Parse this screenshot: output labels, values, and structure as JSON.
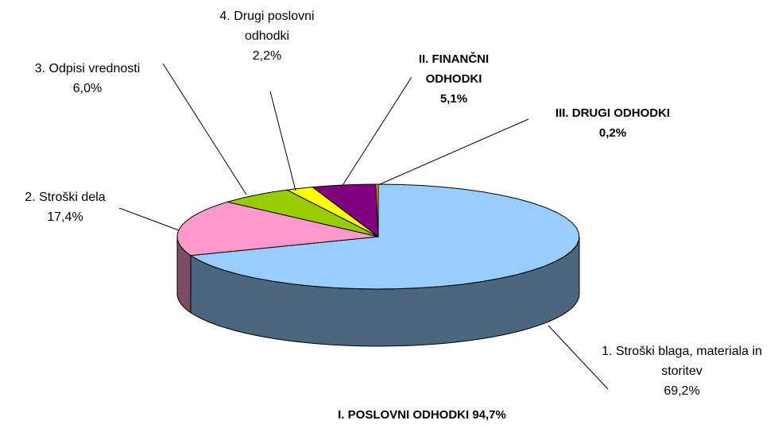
{
  "chart_data": {
    "type": "pie3d",
    "categories": [
      "1. Stroški blaga, materiala in storitev",
      "2. Stroški dela",
      "3. Odpisi vrednosti",
      "4. Drugi poslovni odhodki",
      "II. FINANČNI ODHODKI",
      "III. DRUGI ODHODKI"
    ],
    "values": [
      69.2,
      17.4,
      6.0,
      2.2,
      5.1,
      0.2
    ],
    "value_labels": [
      "69,2%",
      "17,4%",
      "6,0%",
      "2,2%",
      "5,1%",
      "0,2%"
    ],
    "colors": [
      "#99ccff",
      "#ff99cc",
      "#99cc00",
      "#ffff00",
      "#800080",
      "#ff9900"
    ],
    "label_bold": [
      false,
      false,
      false,
      false,
      true,
      true
    ],
    "annotation": "I. POSLOVNI ODHODKI 94,7%"
  }
}
